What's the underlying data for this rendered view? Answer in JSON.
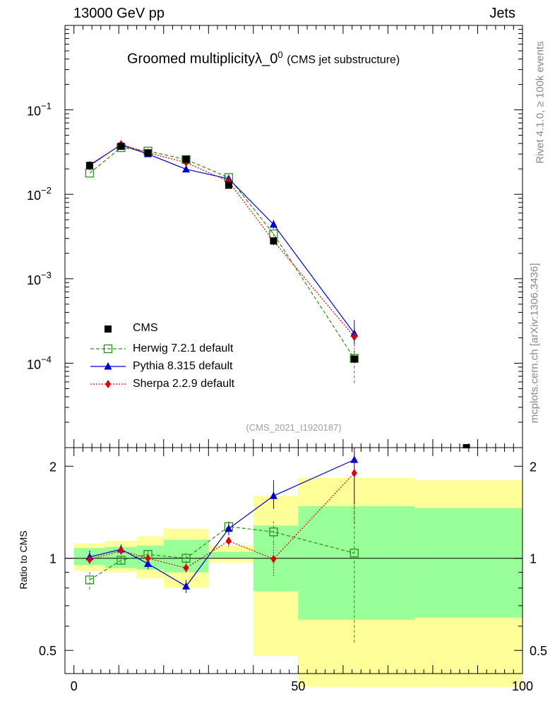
{
  "header": {
    "left": "13000 GeV pp",
    "right": "Jets",
    "side_version": "Rivet 4.1.0, ≥ 100k events",
    "side_url": "mcplots.cern.ch [arXiv:1306.3436]"
  },
  "title": {
    "main": "Groomed multiplicityλ_0",
    "superscript": "0",
    "sub": "(CMS jet substructure)"
  },
  "analysis_id": "(CMS_2021_I1920187)",
  "ratio_label": "Ratio to CMS",
  "legend": [
    {
      "key": "cms",
      "label": "CMS"
    },
    {
      "key": "herwig",
      "label": "Herwig 7.2.1 default"
    },
    {
      "key": "pythia",
      "label": "Pythia 8.315 default"
    },
    {
      "key": "sherpa",
      "label": "Sherpa 2.2.9 default"
    }
  ],
  "colors": {
    "cms": "#000000",
    "herwig": "#2b8c1a",
    "pythia": "#0000cc",
    "sherpa": "#dd0000",
    "band_outer": "#ffff99",
    "band_inner": "#99ff99"
  },
  "chart_data": [
    {
      "type": "scatter",
      "scale": "log",
      "xlim": [
        -2,
        100
      ],
      "ylim": [
        1e-05,
        1
      ],
      "yticks": [
        {
          "value": 0.1,
          "base": "10",
          "exp": "−1"
        },
        {
          "value": 0.01,
          "base": "10",
          "exp": "−2"
        },
        {
          "value": 0.001,
          "base": "10",
          "exp": "−3"
        },
        {
          "value": 0.0001,
          "base": "10",
          "exp": "−4"
        }
      ],
      "x": [
        3.5,
        10.5,
        16.5,
        25,
        34.5,
        44.5,
        62.5
      ],
      "series": [
        {
          "name": "CMS",
          "key": "cms",
          "values": [
            0.022,
            0.037,
            0.031,
            0.026,
            0.0128,
            0.0028,
            0.000112
          ],
          "err_lo": [
            0,
            0,
            0,
            0,
            0,
            0,
            0
          ],
          "err_hi": [
            0,
            0,
            0,
            0,
            0,
            0,
            0
          ]
        },
        {
          "name": "Herwig 7.2.1 default",
          "key": "herwig",
          "values": [
            0.0178,
            0.0357,
            0.0325,
            0.0258,
            0.0158,
            0.0034,
            0.000114
          ],
          "err_lo": [
            0,
            0,
            0,
            0,
            0,
            0.0002,
            5.6e-05
          ],
          "err_hi": [
            0,
            0,
            0,
            0,
            0,
            0.0002,
            3e-05
          ]
        },
        {
          "name": "Pythia 8.315 default",
          "key": "pythia",
          "values": [
            0.0222,
            0.0385,
            0.03,
            0.0198,
            0.0153,
            0.0044,
            0.000225
          ],
          "err_lo": [
            0,
            0.0015,
            0,
            0,
            0,
            0.0005,
            6e-05
          ],
          "err_hi": [
            0,
            0.0015,
            0,
            0,
            0,
            0.0006,
            0.0001
          ]
        },
        {
          "name": "Sherpa 2.2.9 default",
          "key": "sherpa",
          "values": [
            0.0215,
            0.0392,
            0.031,
            0.0238,
            0.0142,
            0.0028,
            0.000205
          ],
          "err_lo": [
            0,
            0,
            0,
            0,
            0,
            0.0003,
            8e-05
          ],
          "err_hi": [
            0,
            0,
            0,
            0,
            0,
            0.0003,
            8e-05
          ]
        }
      ]
    },
    {
      "type": "scatter",
      "scale": "log",
      "xlabel": "",
      "ylabel": "Ratio to CMS",
      "xlim": [
        -2,
        100
      ],
      "ylim": [
        0.42,
        2.3
      ],
      "xticks": [
        0,
        50,
        100
      ],
      "yticks": [
        0.5,
        1,
        2
      ],
      "bins": [
        [
          0,
          7
        ],
        [
          7,
          14
        ],
        [
          14,
          20
        ],
        [
          20,
          30
        ],
        [
          30,
          40
        ],
        [
          40,
          50
        ],
        [
          50,
          76
        ],
        [
          76,
          100
        ]
      ],
      "band_outer": [
        [
          0.91,
          1.12
        ],
        [
          0.9,
          1.14
        ],
        [
          0.86,
          1.18
        ],
        [
          0.8,
          1.25
        ],
        [
          0.97,
          1.1
        ],
        [
          0.48,
          1.6
        ],
        [
          0.38,
          1.83
        ],
        [
          0.38,
          1.8
        ]
      ],
      "band_inner": [
        [
          0.95,
          1.08
        ],
        [
          0.93,
          1.09
        ],
        [
          0.92,
          1.1
        ],
        [
          0.9,
          1.15
        ],
        [
          1.0,
          1.05
        ],
        [
          0.78,
          1.28
        ],
        [
          0.63,
          1.48
        ],
        [
          0.64,
          1.46
        ]
      ],
      "x": [
        3.5,
        10.5,
        16.5,
        25,
        34.5,
        44.5,
        62.5
      ],
      "series": [
        {
          "name": "Herwig 7.2.1 default",
          "key": "herwig",
          "values": [
            0.85,
            0.985,
            1.03,
            1.0,
            1.27,
            1.22,
            1.04
          ],
          "err_lo": [
            0.06,
            0.03,
            0.03,
            0.04,
            0.05,
            0.1,
            0.51
          ],
          "err_hi": [
            0.06,
            0.03,
            0.03,
            0.04,
            0.05,
            0.1,
            0.5
          ]
        },
        {
          "name": "Pythia 8.315 default",
          "key": "pythia",
          "values": [
            1.01,
            1.07,
            0.96,
            0.81,
            1.25,
            1.6,
            2.1
          ],
          "err_lo": [
            0.05,
            0.04,
            0.04,
            0.04,
            0.06,
            0.15,
            0.6
          ],
          "err_hi": [
            0.05,
            0.04,
            0.04,
            0.04,
            0.06,
            0.2,
            0.3
          ]
        },
        {
          "name": "Sherpa 2.2.9 default",
          "key": "sherpa",
          "values": [
            0.99,
            1.06,
            1.0,
            0.93,
            1.14,
            0.995,
            1.9
          ],
          "err_lo": [
            0.03,
            0.03,
            0.03,
            0.03,
            0.05,
            0.12,
            0.6
          ],
          "err_hi": [
            0.03,
            0.03,
            0.03,
            0.03,
            0.05,
            0.12,
            0.4
          ]
        }
      ]
    }
  ]
}
